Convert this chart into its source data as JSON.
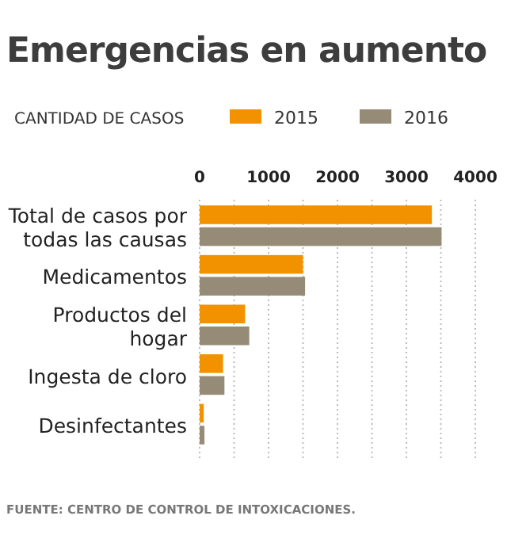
{
  "chart_data": {
    "type": "bar",
    "orientation": "horizontal",
    "title": "Emergencias en aumento",
    "legend_title": "CANTIDAD DE CASOS",
    "legend": "top",
    "grid": "x",
    "categories": [
      "Total de casos por todas las causas",
      "Medicamentos",
      "Productos del hogar",
      "Ingesta de cloro",
      "Desinfectantes"
    ],
    "series": [
      {
        "name": "2015",
        "color": "#f39200",
        "values": [
          3370,
          1500,
          660,
          340,
          60
        ]
      },
      {
        "name": "2016",
        "color": "#958b76",
        "values": [
          3510,
          1530,
          720,
          360,
          70
        ]
      }
    ],
    "xlim": [
      0,
      4000
    ],
    "xticks": [
      0,
      1000,
      2000,
      3000,
      4000
    ],
    "annotations": [
      "FUENTE: CENTRO DE CONTROL DE INTOXICACIONES."
    ]
  }
}
